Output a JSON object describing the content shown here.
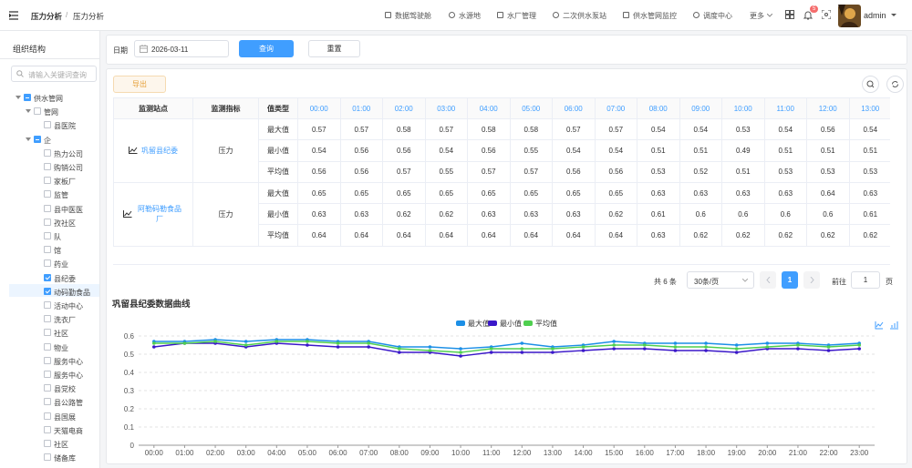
{
  "nav": {
    "breadcrumb": [
      "压力分析",
      "压力分析"
    ],
    "separator": "/",
    "menu": [
      "数据驾驶舱",
      "水源地",
      "水厂管理",
      "二次供水泵站",
      "供水管网监控",
      "调度中心"
    ],
    "more": "更多",
    "badge": 5,
    "user": "admin"
  },
  "sidebar": {
    "title": "组织结构",
    "search_placeholder": "请输入关键词查询",
    "tree": [
      {
        "label": "供水管网",
        "level": 0,
        "state": "partial",
        "expanded": true
      },
      {
        "label": "管网",
        "level": 1,
        "state": "none",
        "expanded": true
      },
      {
        "label": "县医院",
        "level": 2,
        "state": "none"
      },
      {
        "label": "企",
        "level": 1,
        "state": "partial",
        "expanded": true
      },
      {
        "label": "热力公司",
        "level": 2,
        "state": "none"
      },
      {
        "label": "购销公司",
        "level": 2,
        "state": "none"
      },
      {
        "label": "家板厂",
        "level": 2,
        "state": "none"
      },
      {
        "label": "监管",
        "level": 2,
        "state": "none"
      },
      {
        "label": "县中医医",
        "level": 2,
        "state": "none"
      },
      {
        "label": "孜社区",
        "level": 2,
        "state": "none"
      },
      {
        "label": "队",
        "level": 2,
        "state": "none"
      },
      {
        "label": "馆",
        "level": 2,
        "state": "none"
      },
      {
        "label": "药业",
        "level": 2,
        "state": "none"
      },
      {
        "label": "县纪委",
        "level": 2,
        "state": "checked"
      },
      {
        "label": "动码勤食品",
        "level": 2,
        "state": "checked",
        "active": true
      },
      {
        "label": "活动中心",
        "level": 2,
        "state": "none"
      },
      {
        "label": "洗衣厂",
        "level": 2,
        "state": "none"
      },
      {
        "label": "社区",
        "level": 2,
        "state": "none"
      },
      {
        "label": "物业",
        "level": 2,
        "state": "none"
      },
      {
        "label": "服务中心",
        "level": 2,
        "state": "none"
      },
      {
        "label": "服务中心",
        "level": 2,
        "state": "none"
      },
      {
        "label": "县党校",
        "level": 2,
        "state": "none"
      },
      {
        "label": "县公路管",
        "level": 2,
        "state": "none"
      },
      {
        "label": "县国展",
        "level": 2,
        "state": "none"
      },
      {
        "label": "天猫电商",
        "level": 2,
        "state": "none"
      },
      {
        "label": "社区",
        "level": 2,
        "state": "none"
      },
      {
        "label": "储备库",
        "level": 2,
        "state": "none"
      }
    ]
  },
  "filter": {
    "date_label": "日期",
    "date": "2026-03-11",
    "query": "查询",
    "reset": "重置"
  },
  "toolbar": {
    "export": "导出"
  },
  "table": {
    "headers": [
      "监测站点",
      "监测指标",
      "值类型"
    ],
    "hours": [
      "00:00",
      "01:00",
      "02:00",
      "03:00",
      "04:00",
      "05:00",
      "06:00",
      "07:00",
      "08:00",
      "09:00",
      "10:00",
      "11:00",
      "12:00",
      "13:00"
    ],
    "groups": [
      {
        "station": "巩留县纪委",
        "metric": "压力",
        "rows": [
          {
            "type": "最大值",
            "values": [
              0.57,
              0.57,
              0.58,
              0.57,
              0.58,
              0.58,
              0.57,
              0.57,
              0.54,
              0.54,
              0.53,
              0.54,
              0.56,
              0.54
            ]
          },
          {
            "type": "最小值",
            "values": [
              0.54,
              0.56,
              0.56,
              0.54,
              0.56,
              0.55,
              0.54,
              0.54,
              0.51,
              0.51,
              0.49,
              0.51,
              0.51,
              0.51
            ]
          },
          {
            "type": "平均值",
            "values": [
              0.56,
              0.56,
              0.57,
              0.55,
              0.57,
              0.57,
              0.56,
              0.56,
              0.53,
              0.52,
              0.51,
              0.53,
              0.53,
              0.53
            ]
          }
        ]
      },
      {
        "station": "阿勒码勒食品厂",
        "metric": "压力",
        "rows": [
          {
            "type": "最大值",
            "values": [
              0.65,
              0.65,
              0.65,
              0.65,
              0.65,
              0.65,
              0.65,
              0.65,
              0.63,
              0.63,
              0.63,
              0.63,
              0.64,
              0.63
            ]
          },
          {
            "type": "最小值",
            "values": [
              0.63,
              0.63,
              0.62,
              0.62,
              0.63,
              0.63,
              0.63,
              0.62,
              0.61,
              0.6,
              0.6,
              0.6,
              0.6,
              0.61
            ]
          },
          {
            "type": "平均值",
            "values": [
              0.64,
              0.64,
              0.64,
              0.64,
              0.64,
              0.64,
              0.64,
              0.64,
              0.63,
              0.62,
              0.62,
              0.62,
              0.62,
              0.62
            ]
          }
        ]
      }
    ]
  },
  "pagination": {
    "total": "共 6 条",
    "page_size": "30条/页",
    "current": 1,
    "goto": "前往",
    "goto_value": 1,
    "unit": "页"
  },
  "chart_data": {
    "type": "line",
    "title": "巩留县纪委数据曲线",
    "x": [
      "00:00",
      "01:00",
      "02:00",
      "03:00",
      "04:00",
      "05:00",
      "06:00",
      "07:00",
      "08:00",
      "09:00",
      "10:00",
      "11:00",
      "12:00",
      "13:00",
      "14:00",
      "15:00",
      "16:00",
      "17:00",
      "18:00",
      "19:00",
      "20:00",
      "21:00",
      "22:00",
      "23:00"
    ],
    "series": [
      {
        "name": "最大值",
        "color": "#1c8fe6",
        "values": [
          0.57,
          0.57,
          0.58,
          0.57,
          0.58,
          0.58,
          0.57,
          0.57,
          0.54,
          0.54,
          0.53,
          0.54,
          0.56,
          0.54,
          0.55,
          0.57,
          0.56,
          0.56,
          0.56,
          0.55,
          0.56,
          0.56,
          0.55,
          0.56
        ]
      },
      {
        "name": "最小值",
        "color": "#3a17c9",
        "values": [
          0.54,
          0.56,
          0.56,
          0.54,
          0.56,
          0.55,
          0.54,
          0.54,
          0.51,
          0.51,
          0.49,
          0.51,
          0.51,
          0.51,
          0.52,
          0.53,
          0.53,
          0.52,
          0.52,
          0.51,
          0.53,
          0.53,
          0.52,
          0.53
        ]
      },
      {
        "name": "平均值",
        "color": "#4fcf4f",
        "values": [
          0.56,
          0.56,
          0.57,
          0.55,
          0.57,
          0.57,
          0.56,
          0.56,
          0.53,
          0.52,
          0.51,
          0.53,
          0.53,
          0.53,
          0.54,
          0.55,
          0.55,
          0.54,
          0.54,
          0.53,
          0.54,
          0.55,
          0.54,
          0.55
        ]
      }
    ],
    "ylim": [
      0,
      0.6
    ],
    "yticks": [
      0,
      0.1,
      0.2,
      0.3,
      0.4,
      0.5,
      0.6
    ],
    "grid": true
  }
}
